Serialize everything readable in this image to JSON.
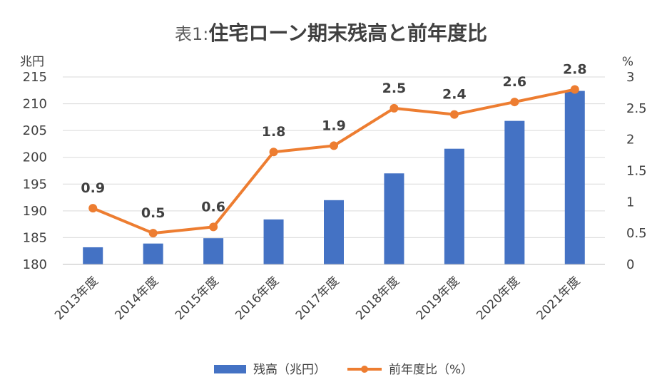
{
  "chart_data": {
    "type": "bar",
    "title_prefix": "表1:",
    "title": "住宅ローン期末残高と前年度比",
    "y_left_unit": "兆円",
    "y_right_unit": "%",
    "categories": [
      "2013年度",
      "2014年度",
      "2015年度",
      "2016年度",
      "2017年度",
      "2018年度",
      "2019年度",
      "2020年度",
      "2021年度"
    ],
    "series": [
      {
        "name": "残高（兆円）",
        "type": "bar",
        "axis": "left",
        "color": "#4472C4",
        "values": [
          183.2,
          183.9,
          184.9,
          188.4,
          192.0,
          197.0,
          201.6,
          206.8,
          212.4
        ]
      },
      {
        "name": "前年度比（%）",
        "type": "line",
        "axis": "right",
        "color": "#ED7D31",
        "values": [
          0.9,
          0.5,
          0.6,
          1.8,
          1.9,
          2.5,
          2.4,
          2.6,
          2.8
        ],
        "data_labels": [
          "0.9",
          "0.5",
          "0.6",
          "1.8",
          "1.9",
          "2.5",
          "2.4",
          "2.6",
          "2.8"
        ]
      }
    ],
    "y_left_ticks": [
      "180",
      "185",
      "190",
      "195",
      "200",
      "205",
      "210",
      "215"
    ],
    "y_right_ticks": [
      "0",
      "0.5",
      "1",
      "1.5",
      "2",
      "2.5",
      "3"
    ],
    "ylim_left": [
      180,
      215
    ],
    "ylim_right": [
      0,
      3
    ],
    "grid": true,
    "legend_position": "bottom"
  }
}
